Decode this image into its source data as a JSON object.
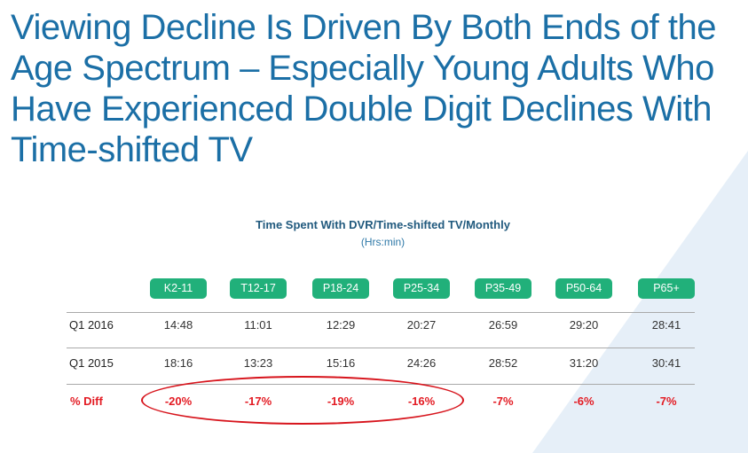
{
  "slide": {
    "title": "Viewing Decline Is Driven By Both Ends of the Age Spectrum – Especially Young Adults Who Have Experienced Double Digit Declines With Time-shifted TV",
    "accent_color": "#1b6fa6"
  },
  "table": {
    "title": "Time Spent With DVR/Time-shifted TV/Monthly",
    "subtitle": "(Hrs:min)",
    "header_color": "#21b07a",
    "highlight_color": "#e31b23",
    "columns": [
      "K2-11",
      "T12-17",
      "P18-24",
      "P25-34",
      "P35-49",
      "P50-64",
      "P65+"
    ],
    "rows": [
      {
        "label": "Q1 2016",
        "values": [
          "14:48",
          "11:01",
          "12:29",
          "20:27",
          "26:59",
          "29:20",
          "28:41"
        ]
      },
      {
        "label": "Q1 2015",
        "values": [
          "18:16",
          "13:23",
          "15:16",
          "24:26",
          "28:52",
          "31:20",
          "30:41"
        ]
      }
    ],
    "diff": {
      "label": "% Diff",
      "values": [
        "-20%",
        "-17%",
        "-19%",
        "-16%",
        "-7%",
        "-6%",
        "-7%"
      ]
    }
  }
}
